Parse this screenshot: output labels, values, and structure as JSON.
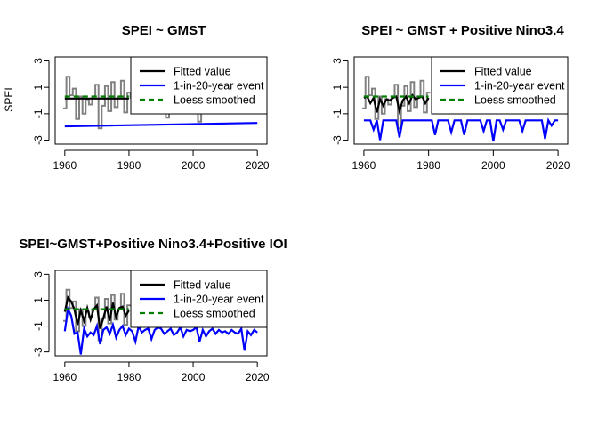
{
  "y_axis_label": "SPEI",
  "chart_data": [
    {
      "type": "line",
      "title": "SPEI ~ GMST",
      "xlim": [
        1957,
        2023
      ],
      "ylim": [
        -3.3,
        3.3
      ],
      "xticks": [
        1960,
        1980,
        2000,
        2020
      ],
      "yticks": [
        -3,
        -1,
        1,
        3
      ],
      "legend": {
        "position": "top-right",
        "entries": [
          "Fitted value",
          "1-in-20-year event",
          "Loess smoothed"
        ]
      },
      "series": [
        {
          "name": "SPEI",
          "color": "#808080",
          "style": "step",
          "x": [
            1960,
            1961,
            1962,
            1963,
            1964,
            1965,
            1966,
            1967,
            1968,
            1969,
            1970,
            1971,
            1972,
            1973,
            1974,
            1975,
            1976,
            1977,
            1978,
            1979,
            1980,
            1981,
            1982,
            1983,
            1984,
            1985,
            1986,
            1987,
            1988,
            1989,
            1990,
            1991,
            1992,
            1993,
            1994,
            1995,
            1996,
            1997,
            1998,
            1999,
            2000,
            2001,
            2002,
            2003,
            2004,
            2005,
            2006,
            2007,
            2008,
            2009,
            2010,
            2011,
            2012,
            2013,
            2014,
            2015,
            2016,
            2017,
            2018,
            2019,
            2020
          ],
          "y": [
            -0.6,
            1.8,
            0.4,
            0.9,
            -1.4,
            0.3,
            -1.0,
            0.1,
            -0.3,
            0.3,
            1.2,
            -2.1,
            -0.4,
            1.1,
            -0.8,
            1.4,
            -0.5,
            0.3,
            1.5,
            -0.9,
            0.6,
            0.2,
            -0.6,
            1.0,
            -0.3,
            0.4,
            0.5,
            -0.2,
            0.6,
            0.3,
            -0.4,
            0.8,
            -1.3,
            0.1,
            0.9,
            -0.5,
            1.4,
            -0.2,
            0.5,
            -0.7,
            0.6,
            0.8,
            -1.6,
            1.5,
            -0.3,
            0.6,
            -0.9,
            1.1,
            0.3,
            -0.4,
            0.7,
            -0.2,
            0.5,
            1.0,
            -0.6,
            0.2,
            0.9,
            -0.4,
            1.1,
            0.3,
            0.6
          ]
        },
        {
          "name": "Fitted value",
          "color": "#000000",
          "x": [
            1960,
            1980
          ],
          "y": [
            0.15,
            0.15
          ]
        },
        {
          "name": "1-in-20-year event",
          "color": "#0000ff",
          "x": [
            1960,
            2020
          ],
          "y": [
            -1.95,
            -1.7
          ]
        },
        {
          "name": "Loess smoothed",
          "color": "#008000",
          "style": "dashed",
          "x": [
            1960,
            1980
          ],
          "y": [
            0.3,
            0.3
          ]
        }
      ]
    },
    {
      "type": "line",
      "title": "SPEI ~ GMST + Positive Nino3.4",
      "xlim": [
        1957,
        2023
      ],
      "ylim": [
        -3.3,
        3.3
      ],
      "xticks": [
        1960,
        1980,
        2000,
        2020
      ],
      "yticks": [
        -3,
        -1,
        1,
        3
      ],
      "legend": {
        "position": "top-right",
        "entries": [
          "Fitted value",
          "1-in-20-year event",
          "Loess smoothed"
        ]
      },
      "series": [
        {
          "name": "SPEI",
          "color": "#808080",
          "style": "step",
          "x": [
            1960,
            1961,
            1962,
            1963,
            1964,
            1965,
            1966,
            1967,
            1968,
            1969,
            1970,
            1971,
            1972,
            1973,
            1974,
            1975,
            1976,
            1977,
            1978,
            1979,
            1980
          ],
          "y": [
            -0.6,
            1.8,
            0.4,
            0.9,
            -1.4,
            0.3,
            -1.0,
            0.1,
            -0.3,
            0.3,
            1.2,
            -2.1,
            -0.4,
            1.1,
            -0.8,
            1.4,
            -0.5,
            0.3,
            1.5,
            -0.9,
            0.6
          ]
        },
        {
          "name": "Fitted value",
          "color": "#000000",
          "x": [
            1960,
            1961,
            1962,
            1963,
            1964,
            1965,
            1966,
            1967,
            1968,
            1969,
            1970,
            1971,
            1972,
            1973,
            1974,
            1975,
            1976,
            1977,
            1978,
            1979,
            1980
          ],
          "y": [
            0.2,
            0.3,
            -0.2,
            0.2,
            -0.9,
            0.1,
            -0.4,
            0.1,
            0.0,
            0.2,
            0.3,
            -0.8,
            0.0,
            0.3,
            -0.2,
            0.4,
            0.1,
            0.2,
            0.3,
            -0.2,
            0.2
          ]
        },
        {
          "name": "1-in-20-year event",
          "color": "#0000ff",
          "x": [
            1960,
            1961,
            1962,
            1963,
            1964,
            1965,
            1966,
            1967,
            1968,
            1969,
            1970,
            1971,
            1972,
            1973,
            1974,
            1975,
            1976,
            1977,
            1978,
            1979,
            1980,
            1981,
            1982,
            1983,
            1984,
            1985,
            1986,
            1987,
            1988,
            1989,
            1990,
            1991,
            1992,
            1993,
            1994,
            1995,
            1996,
            1997,
            1998,
            1999,
            2000,
            2001,
            2002,
            2003,
            2004,
            2005,
            2006,
            2007,
            2008,
            2009,
            2010,
            2011,
            2012,
            2013,
            2014,
            2015,
            2016,
            2017,
            2018,
            2019,
            2020
          ],
          "y": [
            -1.5,
            -1.5,
            -1.5,
            -2.2,
            -1.5,
            -3.0,
            -1.5,
            -1.5,
            -1.5,
            -1.5,
            -1.5,
            -2.8,
            -1.5,
            -1.5,
            -1.5,
            -1.5,
            -1.5,
            -1.5,
            -1.5,
            -1.5,
            -1.5,
            -1.5,
            -2.6,
            -1.5,
            -1.5,
            -1.5,
            -1.5,
            -2.4,
            -1.5,
            -1.5,
            -1.5,
            -2.6,
            -1.5,
            -1.5,
            -1.5,
            -1.5,
            -1.5,
            -2.3,
            -1.5,
            -1.5,
            -3.1,
            -1.5,
            -1.5,
            -2.2,
            -1.5,
            -1.5,
            -1.5,
            -1.5,
            -1.5,
            -2.3,
            -1.5,
            -1.5,
            -1.5,
            -1.5,
            -1.5,
            -1.5,
            -2.9,
            -1.5,
            -1.9,
            -1.5,
            -1.5
          ]
        },
        {
          "name": "Loess smoothed",
          "color": "#008000",
          "style": "dashed",
          "x": [
            1960,
            1980
          ],
          "y": [
            0.3,
            0.3
          ]
        }
      ]
    },
    {
      "type": "line",
      "title": "SPEI~GMST+Positive Nino3.4+Positive IOI",
      "xlim": [
        1957,
        2023
      ],
      "ylim": [
        -3.3,
        3.3
      ],
      "xticks": [
        1960,
        1980,
        2000,
        2020
      ],
      "yticks": [
        -3,
        -1,
        1,
        3
      ],
      "legend": {
        "position": "top-right",
        "entries": [
          "Fitted value",
          "1-in-20-year event",
          "Loess smoothed"
        ]
      },
      "series": [
        {
          "name": "SPEI",
          "color": "#808080",
          "style": "step",
          "x": [
            1960,
            1961,
            1962,
            1963,
            1964,
            1965,
            1966,
            1967,
            1968,
            1969,
            1970,
            1971,
            1972,
            1973,
            1974,
            1975,
            1976,
            1977,
            1978,
            1979,
            1980
          ],
          "y": [
            -0.6,
            1.8,
            0.4,
            0.9,
            -1.4,
            0.3,
            -1.0,
            0.1,
            -0.3,
            0.3,
            1.2,
            -2.1,
            -0.4,
            1.1,
            -0.8,
            1.4,
            -0.5,
            0.3,
            1.5,
            -0.9,
            0.6
          ]
        },
        {
          "name": "Fitted value",
          "color": "#000000",
          "x": [
            1960,
            1961,
            1962,
            1963,
            1964,
            1965,
            1966,
            1967,
            1968,
            1969,
            1970,
            1971,
            1972,
            1973,
            1974,
            1975,
            1976,
            1977,
            1978,
            1979,
            1980
          ],
          "y": [
            0.1,
            1.2,
            0.9,
            0.3,
            -0.9,
            0.2,
            -0.6,
            0.4,
            -0.5,
            0.3,
            0.6,
            -1.2,
            -0.4,
            0.5,
            -0.6,
            0.8,
            -0.3,
            0.4,
            0.5,
            -0.2,
            0.2
          ]
        },
        {
          "name": "1-in-20-year event",
          "color": "#0000ff",
          "x": [
            1960,
            1961,
            1962,
            1963,
            1964,
            1965,
            1966,
            1967,
            1968,
            1969,
            1970,
            1971,
            1972,
            1973,
            1974,
            1975,
            1976,
            1977,
            1978,
            1979,
            1980,
            1981,
            1982,
            1983,
            1984,
            1985,
            1986,
            1987,
            1988,
            1989,
            1990,
            1991,
            1992,
            1993,
            1994,
            1995,
            1996,
            1997,
            1998,
            1999,
            2000,
            2001,
            2002,
            2003,
            2004,
            2005,
            2006,
            2007,
            2008,
            2009,
            2010,
            2011,
            2012,
            2013,
            2014,
            2015,
            2016,
            2017,
            2018,
            2019,
            2020
          ],
          "y": [
            -1.4,
            0.3,
            -0.2,
            -1.6,
            -1.5,
            -3.2,
            -1.2,
            -1.8,
            -1.5,
            -1.7,
            -1.0,
            -2.4,
            -1.3,
            -1.1,
            -1.6,
            -0.9,
            -1.9,
            -1.3,
            -1.0,
            -1.7,
            -1.2,
            -1.4,
            -2.2,
            -1.0,
            -1.5,
            -1.3,
            -1.2,
            -2.0,
            -1.3,
            -1.1,
            -1.2,
            -1.6,
            -1.4,
            -1.2,
            -1.7,
            -1.5,
            -1.1,
            -1.8,
            -1.3,
            -1.4,
            -1.3,
            -1.1,
            -2.2,
            -1.3,
            -1.8,
            -1.4,
            -1.2,
            -1.6,
            -1.3,
            -1.5,
            -1.4,
            -1.6,
            -1.3,
            -1.5,
            -1.6,
            -1.2,
            -2.9,
            -1.4,
            -1.7,
            -1.3,
            -1.5
          ]
        },
        {
          "name": "Loess smoothed",
          "color": "#008000",
          "style": "dashed",
          "x": [
            1960,
            1980
          ],
          "y": [
            0.3,
            0.3
          ]
        }
      ]
    }
  ]
}
